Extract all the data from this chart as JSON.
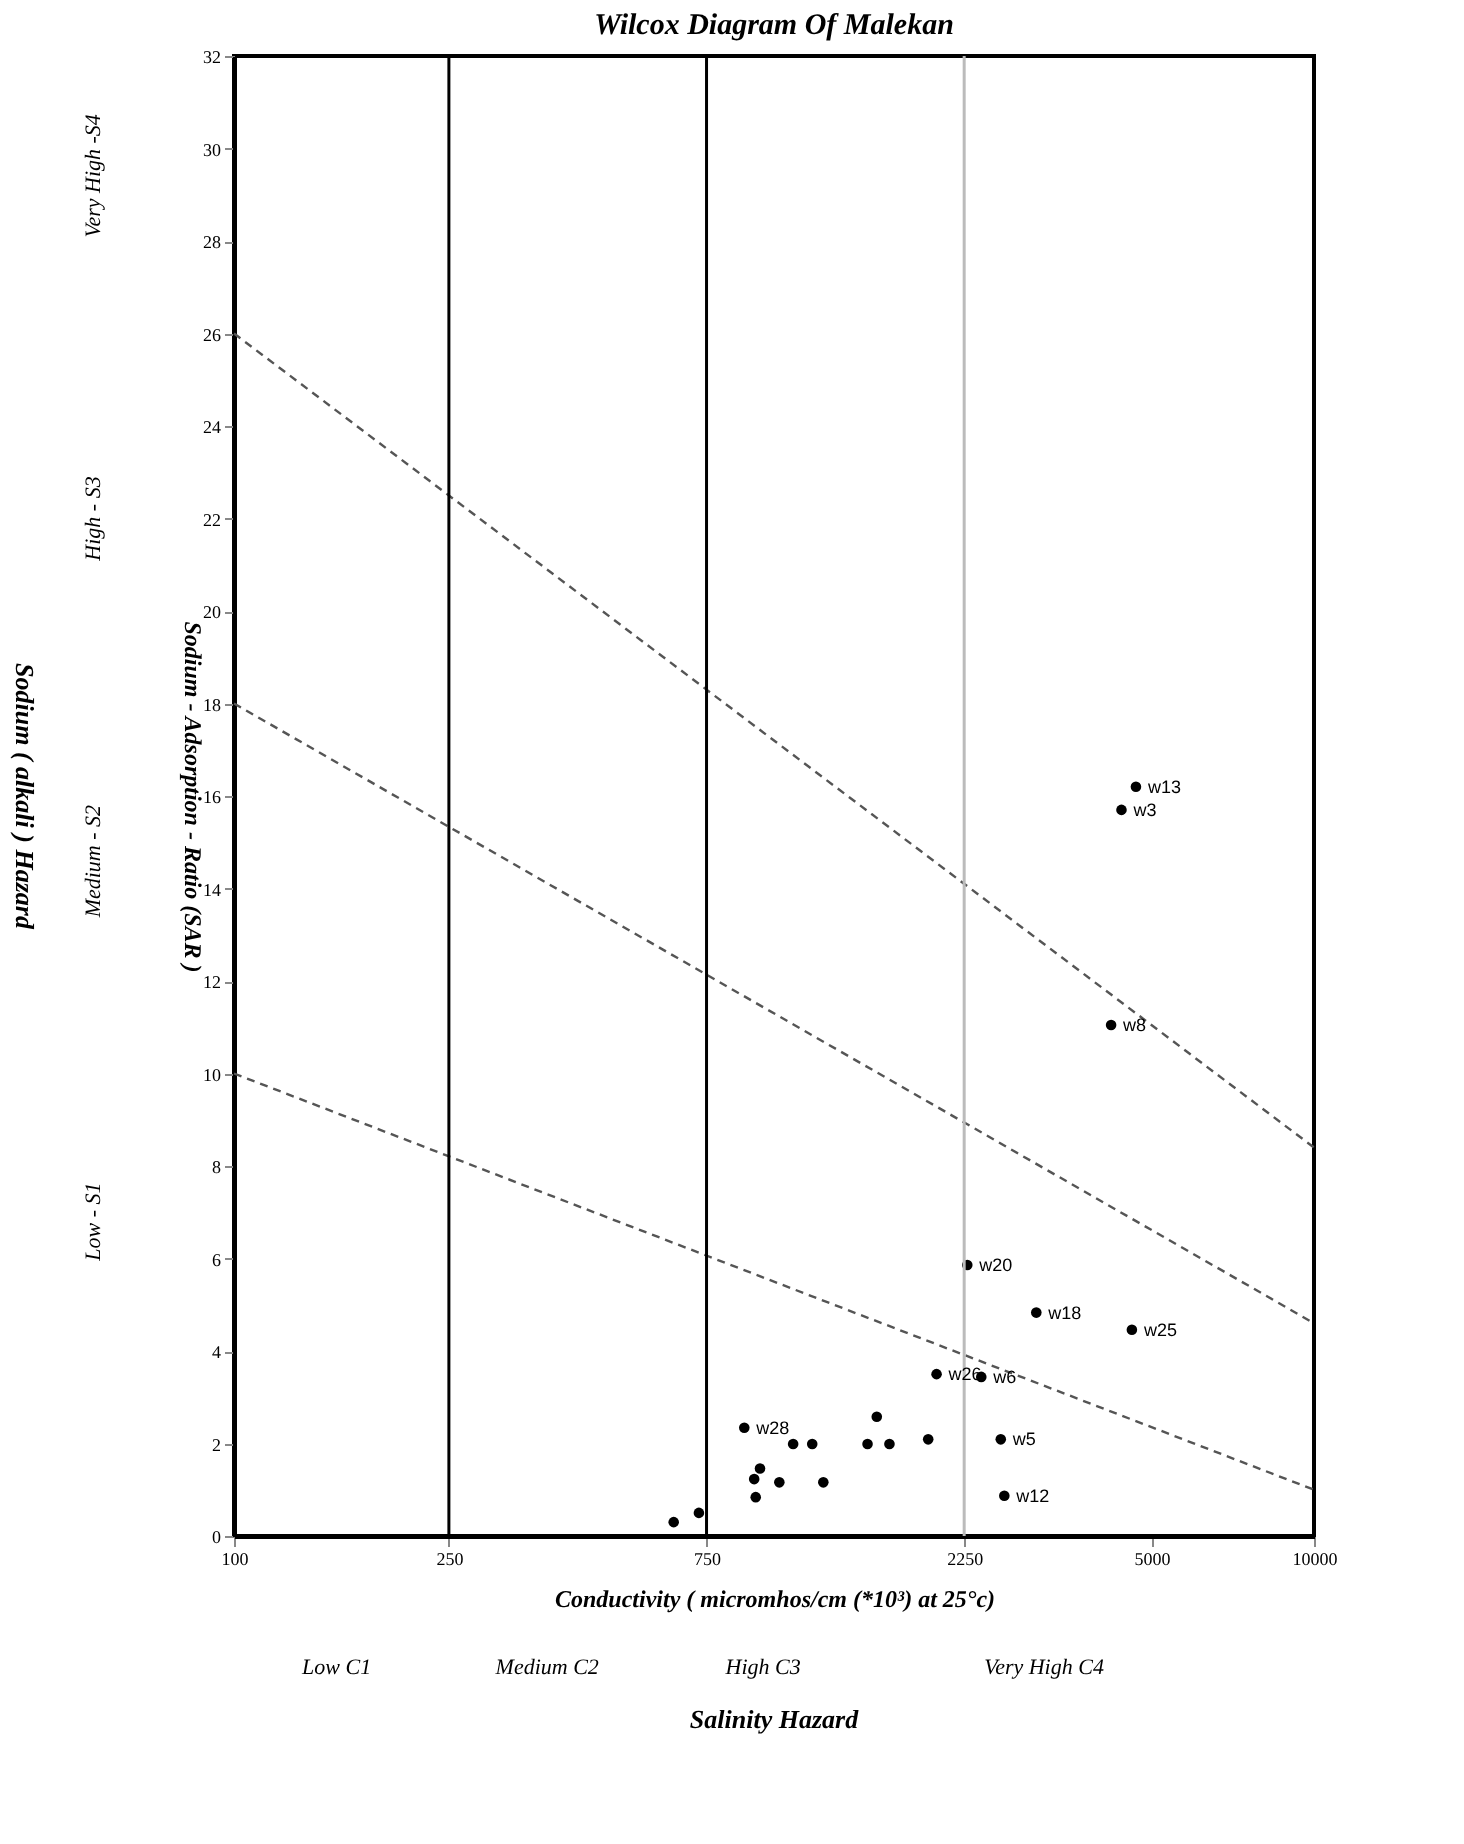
{
  "chart_data": {
    "type": "scatter",
    "title": "Wilcox Diagram Of Malekan",
    "xlabel": "Conductivity ( micromhos/cm (*10³) at 25°c)",
    "ylabel": "Sodium - Adsorption - Ratio (SAR )",
    "log": "x",
    "xlim": [
      100,
      10000
    ],
    "xticks": [
      100,
      250,
      750,
      2250,
      5000,
      10000
    ],
    "ylim": [
      0,
      32
    ],
    "yticks": [
      0,
      2,
      4,
      6,
      8,
      10,
      12,
      14,
      16,
      18,
      20,
      22,
      24,
      26,
      28,
      30,
      32
    ],
    "grid": false,
    "series": [
      {
        "type": "line",
        "color": "#555555",
        "line_style": "dashed",
        "x": [
          100,
          10000
        ],
        "values": [
          10,
          1.0
        ]
      },
      {
        "type": "line",
        "color": "#555555",
        "line_style": "dashed",
        "x": [
          100,
          10000
        ],
        "values": [
          18,
          4.6
        ]
      },
      {
        "type": "line",
        "color": "#555555",
        "line_style": "dashed",
        "x": [
          100,
          10000
        ],
        "values": [
          26,
          8.4
        ]
      },
      {
        "color": "#000000",
        "marker": "circle",
        "x": [
          4680,
          4400,
          4210,
          2280,
          3060,
          4600,
          2000,
          2420,
          1550,
          881,
          1930,
          2630,
          2670,
          1085,
          1490,
          942,
          919,
          925,
          1023,
          1234,
          652,
          726,
          1636,
          1177
        ],
        "values": [
          16.2,
          15.7,
          11.05,
          5.86,
          4.83,
          4.46,
          3.5,
          3.44,
          2.58,
          2.34,
          2.09,
          2.09,
          0.87,
          1.99,
          1.99,
          1.46,
          1.23,
          0.84,
          1.16,
          1.16,
          0.3,
          0.5,
          1.99,
          1.99
        ]
      }
    ],
    "ref_lines": [
      {
        "axis": "x",
        "value": 250,
        "color": "#000000"
      },
      {
        "axis": "x",
        "value": 750,
        "color": "#000000"
      },
      {
        "axis": "x",
        "value": 2250,
        "color": "#bbbbbb"
      }
    ],
    "annotations": [
      "Sodium ( alkali ) Hazard",
      "Salinity  Hazard",
      "Very High -S4",
      "High - S3",
      "Medium - S2",
      "Low - S1",
      "Low   C1",
      "Medium   C2",
      "High   C3",
      "Very High   C4",
      {
        "text": "w13",
        "x": 4680,
        "y": 16.2
      },
      {
        "text": "w3",
        "x": 4400,
        "y": 15.7
      },
      {
        "text": "w8",
        "x": 4210,
        "y": 11.05
      },
      {
        "text": "w20",
        "x": 2280,
        "y": 5.86
      },
      {
        "text": "w18",
        "x": 3060,
        "y": 4.83
      },
      {
        "text": "w25",
        "x": 4600,
        "y": 4.46
      },
      {
        "text": "w26",
        "x": 2000,
        "y": 3.5
      },
      {
        "text": "w6",
        "x": 2420,
        "y": 3.44
      },
      {
        "text": "w28",
        "x": 881,
        "y": 2.34
      },
      {
        "text": "w5",
        "x": 2630,
        "y": 2.09
      },
      {
        "text": "w12",
        "x": 2670,
        "y": 0.87
      }
    ]
  }
}
